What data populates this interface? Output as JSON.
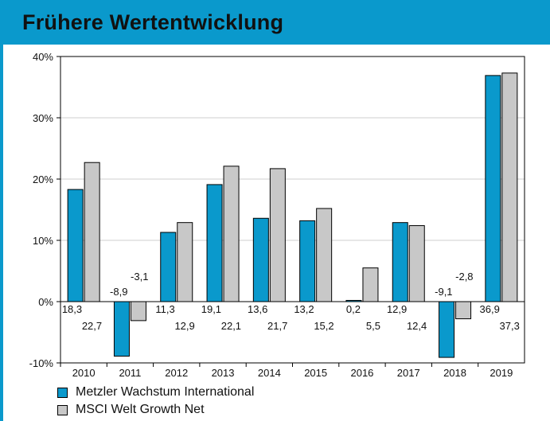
{
  "header": {
    "title": "Frühere Wertentwicklung"
  },
  "colors": {
    "header_bg": "#0a99cc",
    "series1": "#0a99cc",
    "series2": "#c8c8c8",
    "grid": "#cfcfcf"
  },
  "chart_data": {
    "type": "bar",
    "title": "Frühere Wertentwicklung",
    "categories": [
      "2010",
      "2011",
      "2012",
      "2013",
      "2014",
      "2015",
      "2016",
      "2017",
      "2018",
      "2019"
    ],
    "series": [
      {
        "name": "Metzler Wachstum International",
        "values": [
          18.3,
          -8.9,
          11.3,
          19.1,
          13.6,
          13.2,
          0.2,
          12.9,
          -9.1,
          36.9
        ],
        "labels": [
          "18,3",
          "-8,9",
          "11,3",
          "19,1",
          "13,6",
          "13,2",
          "0,2",
          "12,9",
          "-9,1",
          "36,9"
        ]
      },
      {
        "name": "MSCI Welt Growth Net",
        "values": [
          22.7,
          -3.1,
          12.9,
          22.1,
          21.7,
          15.2,
          5.5,
          12.4,
          -2.8,
          37.3
        ],
        "labels": [
          "22,7",
          "-3,1",
          "12,9",
          "22,1",
          "21,7",
          "15,2",
          "5,5",
          "12,4",
          "-2,8",
          "37,3"
        ]
      }
    ],
    "ylim": [
      -10,
      40
    ],
    "yticks": [
      -10,
      0,
      10,
      20,
      30,
      40
    ],
    "ytick_labels": [
      "-10%",
      "0%",
      "10%",
      "20%",
      "30%",
      "40%"
    ],
    "grid": true,
    "legend": "bottom-left"
  }
}
